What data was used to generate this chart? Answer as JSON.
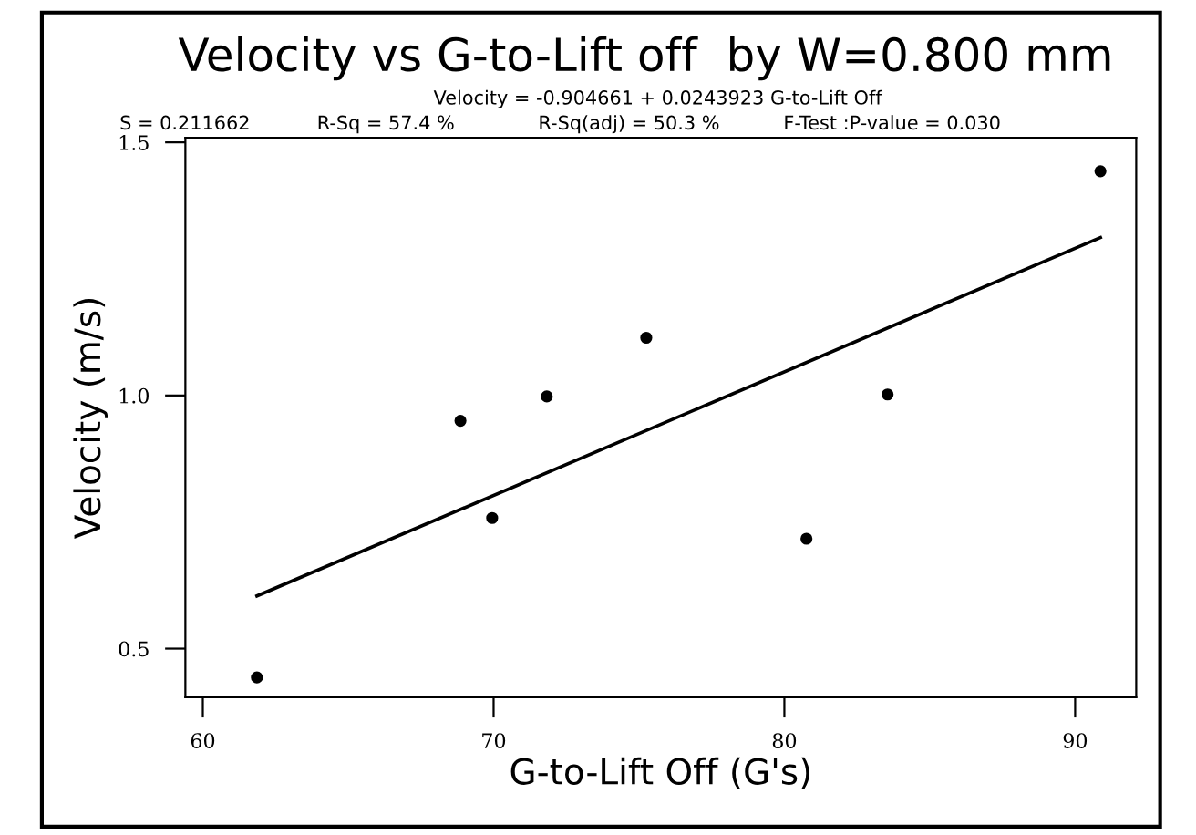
{
  "chart_data": {
    "type": "scatter",
    "title": "Velocity vs G-to-Lift off  by W=0.800 mm",
    "subtitle": "Velocity = -0.904661 + 0.0243923 G-to-Lift Off",
    "xlabel": "G-to-Lift Off (G's)",
    "ylabel": "Velocity (m/s)",
    "annotations": [
      "S = 0.211662",
      "R-Sq = 57.4 %",
      "R-Sq(adj) = 50.3 %",
      "F-Test :P-value = 0.030"
    ],
    "series": [
      {
        "color": "#000000",
        "marker": "circle",
        "x": [
          61.86,
          68.86,
          69.95,
          71.83,
          75.25,
          80.76,
          83.55,
          90.87
        ],
        "values": [
          0.443,
          0.95,
          0.758,
          0.998,
          1.114,
          0.717,
          1.002,
          1.443
        ]
      },
      {
        "type": "line",
        "color": "#000000",
        "line_style": "solid",
        "x": [
          61.86,
          90.87
        ],
        "values": [
          0.604,
          1.312
        ]
      }
    ],
    "xlim": [
      59.4,
      92.1
    ],
    "ylim": [
      0.404,
      1.509
    ],
    "xticks": [
      60,
      70,
      80,
      90
    ],
    "yticks": [
      0.5,
      {
        "value": 1,
        "label": "1.0"
      },
      1.5
    ],
    "grid": false,
    "legend": false
  }
}
